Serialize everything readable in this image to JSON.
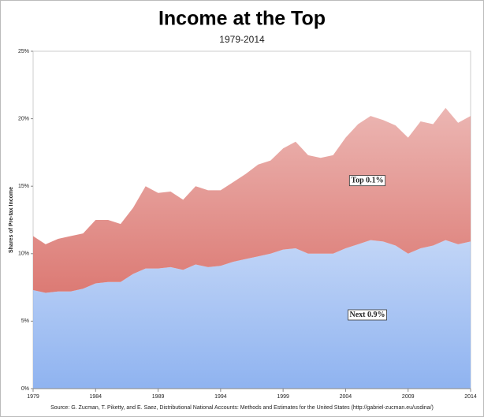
{
  "chart_data": {
    "type": "stacked_area",
    "title": "Income at the Top",
    "subtitle": "1979-2014",
    "y_label": "Shares of Pre-tax Income",
    "source": "Source: G. Zucman, T. Piketty, and E. Saez, Distributional National Accounts: Methods and Estimates for the United States (http://gabriel-zucman.eu/usdina/)",
    "x": [
      1979,
      1980,
      1981,
      1982,
      1983,
      1984,
      1985,
      1986,
      1987,
      1988,
      1989,
      1990,
      1991,
      1992,
      1993,
      1994,
      1995,
      1996,
      1997,
      1998,
      1999,
      2000,
      2001,
      2002,
      2003,
      2004,
      2005,
      2006,
      2007,
      2008,
      2009,
      2010,
      2011,
      2012,
      2013,
      2014
    ],
    "series": [
      {
        "name": "Next 0.9%",
        "color": "#8fb3f0",
        "values": [
          7.3,
          7.1,
          7.2,
          7.2,
          7.4,
          7.8,
          7.9,
          7.9,
          8.5,
          8.9,
          8.9,
          9.0,
          8.8,
          9.2,
          9.0,
          9.1,
          9.4,
          9.6,
          9.8,
          10.0,
          10.3,
          10.4,
          10.0,
          10.0,
          10.0,
          10.4,
          10.7,
          11.0,
          10.9,
          10.6,
          10.0,
          10.4,
          10.6,
          11.0,
          10.7,
          10.9
        ]
      },
      {
        "name": "Top 0.1%",
        "color": "#dc7a74",
        "values": [
          4.0,
          3.6,
          3.9,
          4.1,
          4.1,
          4.7,
          4.6,
          4.3,
          4.9,
          6.1,
          5.6,
          5.6,
          5.2,
          5.8,
          5.7,
          5.6,
          5.9,
          6.3,
          6.8,
          6.9,
          7.5,
          7.9,
          7.3,
          7.1,
          7.3,
          8.2,
          8.9,
          9.2,
          9.0,
          8.9,
          8.6,
          9.4,
          9.0,
          9.8,
          9.0,
          9.3
        ]
      }
    ],
    "xlim": [
      1979,
      2014
    ],
    "xticks": [
      1979,
      1984,
      1989,
      1994,
      1999,
      2004,
      2009,
      2014
    ],
    "ylim": [
      0,
      25
    ],
    "yticks": [
      {
        "value": 0,
        "label": "0%"
      },
      {
        "value": 5,
        "label": "5%"
      },
      {
        "value": 10,
        "label": "10%"
      },
      {
        "value": 15,
        "label": "15%"
      },
      {
        "value": 20,
        "label": "20%"
      },
      {
        "value": 25,
        "label": "25%"
      }
    ]
  }
}
